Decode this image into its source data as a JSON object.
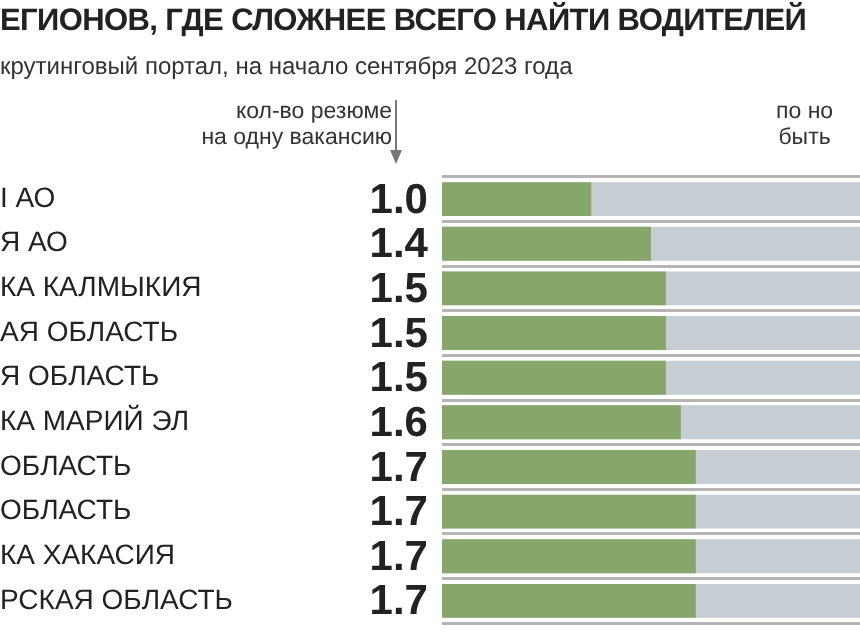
{
  "chart_data": {
    "type": "bar",
    "orientation": "horizontal",
    "title": "ЕГИОНОВ, ГДЕ СЛОЖНЕЕ ВСЕГО НАЙТИ ВОДИТЕЛЕЙ",
    "subtitle": "крутинговый портал, на начало сентября 2023 года",
    "annotations": [
      "кол-во резюме\nна одну вакансию",
      "по но\nбыть"
    ],
    "categories": [
      "I АО",
      "Я АО",
      "КА КАЛМЫКИЯ",
      "АЯ ОБЛАСТЬ",
      "Я ОБЛАСТЬ",
      "КА МАРИЙ ЭЛ",
      "ОБЛАСТЬ",
      "ОБЛАСТЬ",
      "КА ХАКАСИЯ",
      "РСКАЯ ОБЛАСТЬ"
    ],
    "values": [
      1.0,
      1.4,
      1.5,
      1.5,
      1.5,
      1.6,
      1.7,
      1.7,
      1.7,
      1.7
    ],
    "value_labels": [
      "1.0",
      "1.4",
      "1.5",
      "1.5",
      "1.5",
      "1.6",
      "1.7",
      "1.7",
      "1.7",
      "1.7"
    ],
    "color": "#87a66c",
    "xlim": [
      0,
      2.8
    ],
    "tick_labels": "y",
    "grid": "y",
    "legend": false
  }
}
